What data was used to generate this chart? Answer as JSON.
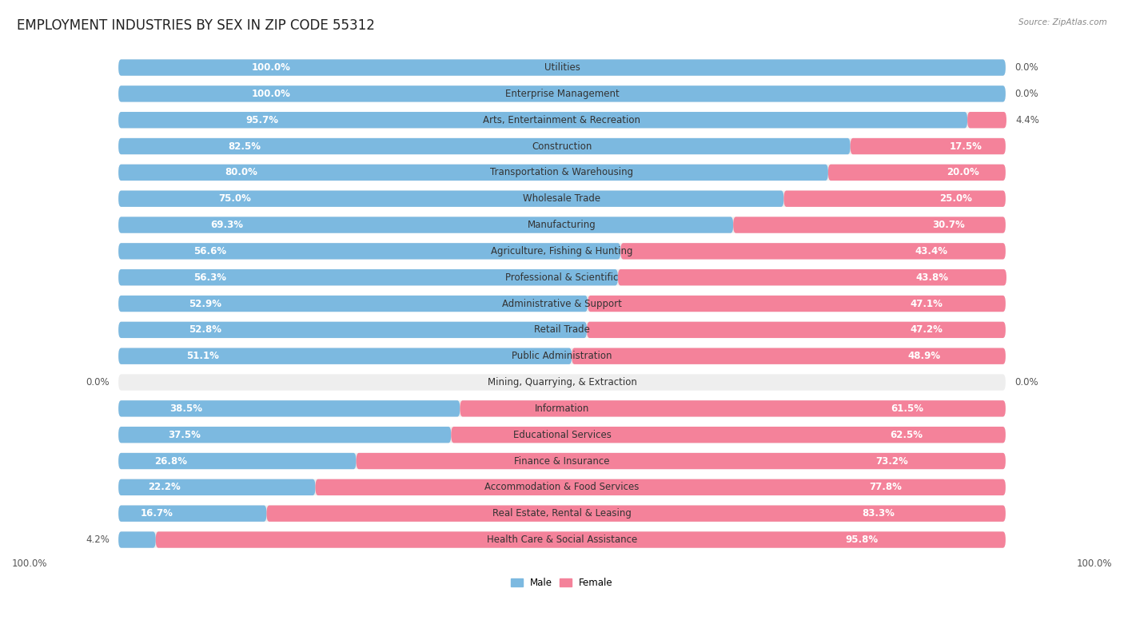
{
  "title": "EMPLOYMENT INDUSTRIES BY SEX IN ZIP CODE 55312",
  "source": "Source: ZipAtlas.com",
  "categories": [
    "Utilities",
    "Enterprise Management",
    "Arts, Entertainment & Recreation",
    "Construction",
    "Transportation & Warehousing",
    "Wholesale Trade",
    "Manufacturing",
    "Agriculture, Fishing & Hunting",
    "Professional & Scientific",
    "Administrative & Support",
    "Retail Trade",
    "Public Administration",
    "Mining, Quarrying, & Extraction",
    "Information",
    "Educational Services",
    "Finance & Insurance",
    "Accommodation & Food Services",
    "Real Estate, Rental & Leasing",
    "Health Care & Social Assistance"
  ],
  "male": [
    100.0,
    100.0,
    95.7,
    82.5,
    80.0,
    75.0,
    69.3,
    56.6,
    56.3,
    52.9,
    52.8,
    51.1,
    0.0,
    38.5,
    37.5,
    26.8,
    22.2,
    16.7,
    4.2
  ],
  "female": [
    0.0,
    0.0,
    4.4,
    17.5,
    20.0,
    25.0,
    30.7,
    43.4,
    43.8,
    47.1,
    47.2,
    48.9,
    0.0,
    61.5,
    62.5,
    73.2,
    77.8,
    83.3,
    95.8
  ],
  "male_color": "#7CB9E0",
  "female_color": "#F4829A",
  "bg_color": "#FFFFFF",
  "row_bg_color": "#EEEEEE",
  "title_fontsize": 12,
  "label_fontsize": 8.5,
  "axis_label_fontsize": 8.5,
  "bar_height": 0.62
}
